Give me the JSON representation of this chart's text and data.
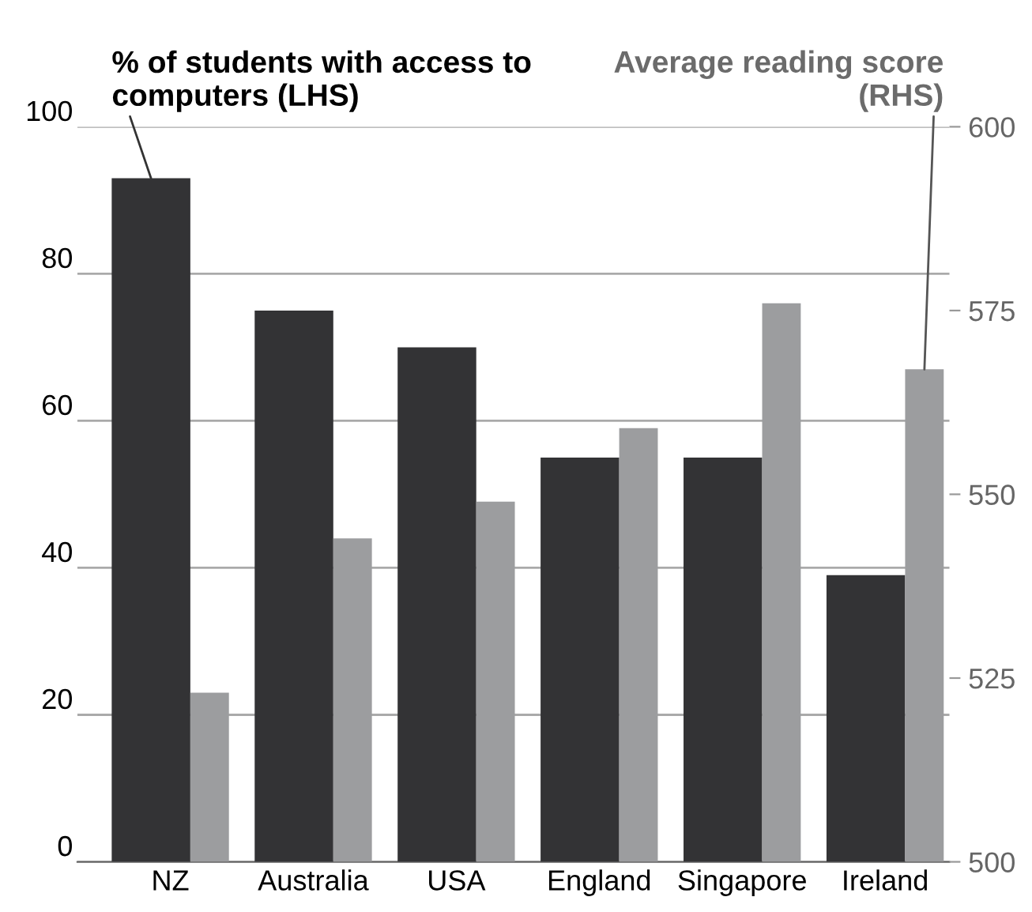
{
  "chart_data": {
    "type": "bar",
    "categories": [
      "NZ",
      "Australia",
      "USA",
      "England",
      "Singapore",
      "Ireland"
    ],
    "series": [
      {
        "name": "% of students with access to computers (LHS)",
        "color": "#333335",
        "values": [
          93,
          75,
          70,
          55,
          55,
          39
        ]
      },
      {
        "name": "Average reading score (RHS)",
        "color": "#9c9d9f",
        "axis": "y2",
        "values": [
          523,
          544,
          549,
          559,
          576,
          567
        ]
      }
    ],
    "ylim": [
      0,
      100
    ],
    "yticks": [
      0,
      20,
      40,
      60,
      80,
      100
    ],
    "y2lim": [
      500,
      600
    ],
    "y2ticks": [
      500,
      525,
      550,
      575,
      600
    ],
    "grid": "y",
    "legend": false
  }
}
